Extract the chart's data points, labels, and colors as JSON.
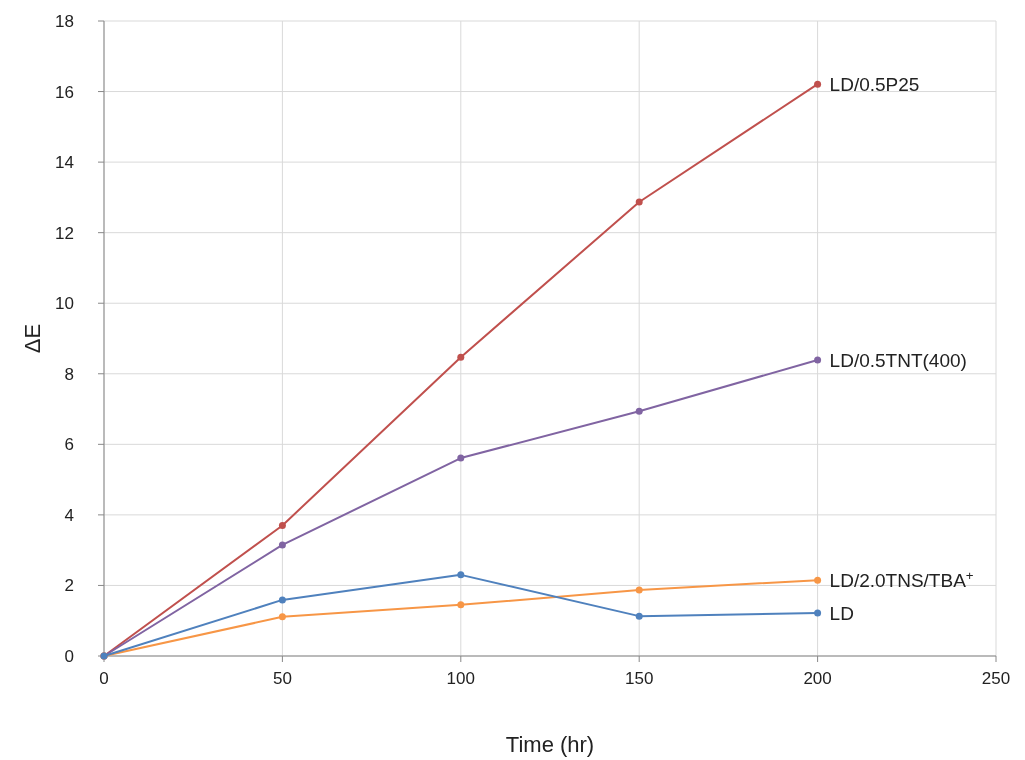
{
  "chart_data": {
    "type": "line",
    "xlabel": "Time (hr)",
    "ylabel": "ΔE",
    "x": [
      0,
      50,
      100,
      150,
      200
    ],
    "xlim": [
      0,
      250
    ],
    "xticks": [
      0,
      50,
      100,
      150,
      200,
      250
    ],
    "ylim": [
      0,
      18
    ],
    "yticks": [
      0,
      2,
      4,
      6,
      8,
      10,
      12,
      14,
      16,
      18
    ],
    "grid": true,
    "marker": "circle",
    "line_style": "solid",
    "series": [
      {
        "name": "LD/0.5P25",
        "color": "#c0504d",
        "values": [
          0,
          3.7,
          8.47,
          12.87,
          16.21
        ]
      },
      {
        "name": "LD/0.5TNT(400)",
        "color": "#8064a2",
        "values": [
          0,
          3.15,
          5.61,
          6.94,
          8.39
        ]
      },
      {
        "name": "LD/2.0TNS/TBA$^{+}$",
        "color": "#f79646",
        "values": [
          0,
          1.11,
          1.45,
          1.87,
          2.15
        ]
      },
      {
        "name": "LD",
        "color": "#4f81bd",
        "values": [
          0,
          1.59,
          2.3,
          1.13,
          1.22
        ]
      }
    ]
  }
}
